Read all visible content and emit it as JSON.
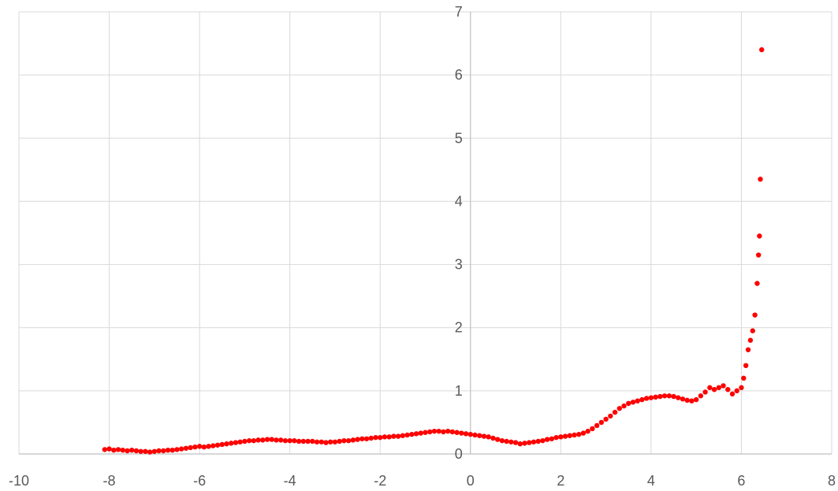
{
  "chart_data": {
    "type": "scatter",
    "title": "",
    "xlabel": "",
    "ylabel": "",
    "xlim": [
      -10,
      8
    ],
    "ylim": [
      0,
      7
    ],
    "x_ticks": [
      -10,
      -8,
      -6,
      -4,
      -2,
      0,
      2,
      4,
      6,
      8
    ],
    "y_ticks": [
      0,
      1,
      2,
      3,
      4,
      5,
      6,
      7
    ],
    "grid": true,
    "legend": "none",
    "marker_color": "#ff0000",
    "series": [
      {
        "points": [
          [
            -8.1,
            0.07
          ],
          [
            -8.0,
            0.08
          ],
          [
            -7.9,
            0.06
          ],
          [
            -7.8,
            0.07
          ],
          [
            -7.7,
            0.06
          ],
          [
            -7.6,
            0.05
          ],
          [
            -7.5,
            0.06
          ],
          [
            -7.4,
            0.05
          ],
          [
            -7.3,
            0.04
          ],
          [
            -7.2,
            0.04
          ],
          [
            -7.1,
            0.03
          ],
          [
            -7.0,
            0.04
          ],
          [
            -6.9,
            0.05
          ],
          [
            -6.8,
            0.05
          ],
          [
            -6.7,
            0.06
          ],
          [
            -6.6,
            0.06
          ],
          [
            -6.5,
            0.07
          ],
          [
            -6.4,
            0.08
          ],
          [
            -6.3,
            0.09
          ],
          [
            -6.2,
            0.1
          ],
          [
            -6.1,
            0.11
          ],
          [
            -6.0,
            0.12
          ],
          [
            -5.9,
            0.11
          ],
          [
            -5.8,
            0.12
          ],
          [
            -5.7,
            0.13
          ],
          [
            -5.6,
            0.14
          ],
          [
            -5.5,
            0.15
          ],
          [
            -5.4,
            0.16
          ],
          [
            -5.3,
            0.17
          ],
          [
            -5.2,
            0.18
          ],
          [
            -5.1,
            0.19
          ],
          [
            -5.0,
            0.2
          ],
          [
            -4.9,
            0.21
          ],
          [
            -4.8,
            0.21
          ],
          [
            -4.7,
            0.22
          ],
          [
            -4.6,
            0.22
          ],
          [
            -4.5,
            0.23
          ],
          [
            -4.4,
            0.23
          ],
          [
            -4.3,
            0.22
          ],
          [
            -4.2,
            0.22
          ],
          [
            -4.1,
            0.21
          ],
          [
            -4.0,
            0.21
          ],
          [
            -3.9,
            0.21
          ],
          [
            -3.8,
            0.2
          ],
          [
            -3.7,
            0.2
          ],
          [
            -3.6,
            0.2
          ],
          [
            -3.5,
            0.2
          ],
          [
            -3.4,
            0.19
          ],
          [
            -3.3,
            0.19
          ],
          [
            -3.2,
            0.18
          ],
          [
            -3.1,
            0.19
          ],
          [
            -3.0,
            0.19
          ],
          [
            -2.9,
            0.2
          ],
          [
            -2.8,
            0.21
          ],
          [
            -2.7,
            0.21
          ],
          [
            -2.6,
            0.22
          ],
          [
            -2.5,
            0.23
          ],
          [
            -2.4,
            0.24
          ],
          [
            -2.3,
            0.24
          ],
          [
            -2.2,
            0.25
          ],
          [
            -2.1,
            0.26
          ],
          [
            -2.0,
            0.26
          ],
          [
            -1.9,
            0.27
          ],
          [
            -1.8,
            0.27
          ],
          [
            -1.7,
            0.28
          ],
          [
            -1.6,
            0.28
          ],
          [
            -1.5,
            0.29
          ],
          [
            -1.4,
            0.3
          ],
          [
            -1.3,
            0.31
          ],
          [
            -1.2,
            0.32
          ],
          [
            -1.1,
            0.33
          ],
          [
            -1.0,
            0.34
          ],
          [
            -0.9,
            0.35
          ],
          [
            -0.8,
            0.36
          ],
          [
            -0.7,
            0.36
          ],
          [
            -0.6,
            0.35
          ],
          [
            -0.5,
            0.36
          ],
          [
            -0.4,
            0.35
          ],
          [
            -0.3,
            0.34
          ],
          [
            -0.2,
            0.33
          ],
          [
            -0.1,
            0.32
          ],
          [
            0.0,
            0.31
          ],
          [
            0.1,
            0.3
          ],
          [
            0.2,
            0.29
          ],
          [
            0.3,
            0.28
          ],
          [
            0.4,
            0.27
          ],
          [
            0.5,
            0.25
          ],
          [
            0.6,
            0.23
          ],
          [
            0.7,
            0.21
          ],
          [
            0.8,
            0.2
          ],
          [
            0.9,
            0.19
          ],
          [
            1.0,
            0.18
          ],
          [
            1.1,
            0.16
          ],
          [
            1.2,
            0.17
          ],
          [
            1.3,
            0.18
          ],
          [
            1.4,
            0.19
          ],
          [
            1.5,
            0.2
          ],
          [
            1.6,
            0.21
          ],
          [
            1.7,
            0.23
          ],
          [
            1.8,
            0.24
          ],
          [
            1.9,
            0.26
          ],
          [
            2.0,
            0.27
          ],
          [
            2.1,
            0.28
          ],
          [
            2.2,
            0.29
          ],
          [
            2.3,
            0.3
          ],
          [
            2.4,
            0.31
          ],
          [
            2.5,
            0.33
          ],
          [
            2.6,
            0.36
          ],
          [
            2.7,
            0.4
          ],
          [
            2.8,
            0.45
          ],
          [
            2.9,
            0.5
          ],
          [
            3.0,
            0.55
          ],
          [
            3.1,
            0.6
          ],
          [
            3.2,
            0.66
          ],
          [
            3.3,
            0.72
          ],
          [
            3.4,
            0.76
          ],
          [
            3.5,
            0.8
          ],
          [
            3.6,
            0.82
          ],
          [
            3.7,
            0.84
          ],
          [
            3.8,
            0.86
          ],
          [
            3.9,
            0.88
          ],
          [
            4.0,
            0.89
          ],
          [
            4.1,
            0.9
          ],
          [
            4.2,
            0.91
          ],
          [
            4.3,
            0.92
          ],
          [
            4.4,
            0.92
          ],
          [
            4.5,
            0.91
          ],
          [
            4.6,
            0.89
          ],
          [
            4.7,
            0.87
          ],
          [
            4.8,
            0.85
          ],
          [
            4.9,
            0.84
          ],
          [
            5.0,
            0.86
          ],
          [
            5.1,
            0.92
          ],
          [
            5.2,
            0.98
          ],
          [
            5.3,
            1.05
          ],
          [
            5.4,
            1.02
          ],
          [
            5.5,
            1.05
          ],
          [
            5.6,
            1.08
          ],
          [
            5.7,
            1.02
          ],
          [
            5.8,
            0.95
          ],
          [
            5.9,
            1.0
          ],
          [
            6.0,
            1.05
          ],
          [
            6.05,
            1.2
          ],
          [
            6.1,
            1.4
          ],
          [
            6.15,
            1.65
          ],
          [
            6.2,
            1.8
          ],
          [
            6.25,
            1.95
          ],
          [
            6.3,
            2.2
          ],
          [
            6.35,
            2.7
          ],
          [
            6.38,
            3.15
          ],
          [
            6.4,
            3.45
          ],
          [
            6.42,
            4.35
          ],
          [
            6.45,
            6.4
          ]
        ]
      }
    ]
  }
}
